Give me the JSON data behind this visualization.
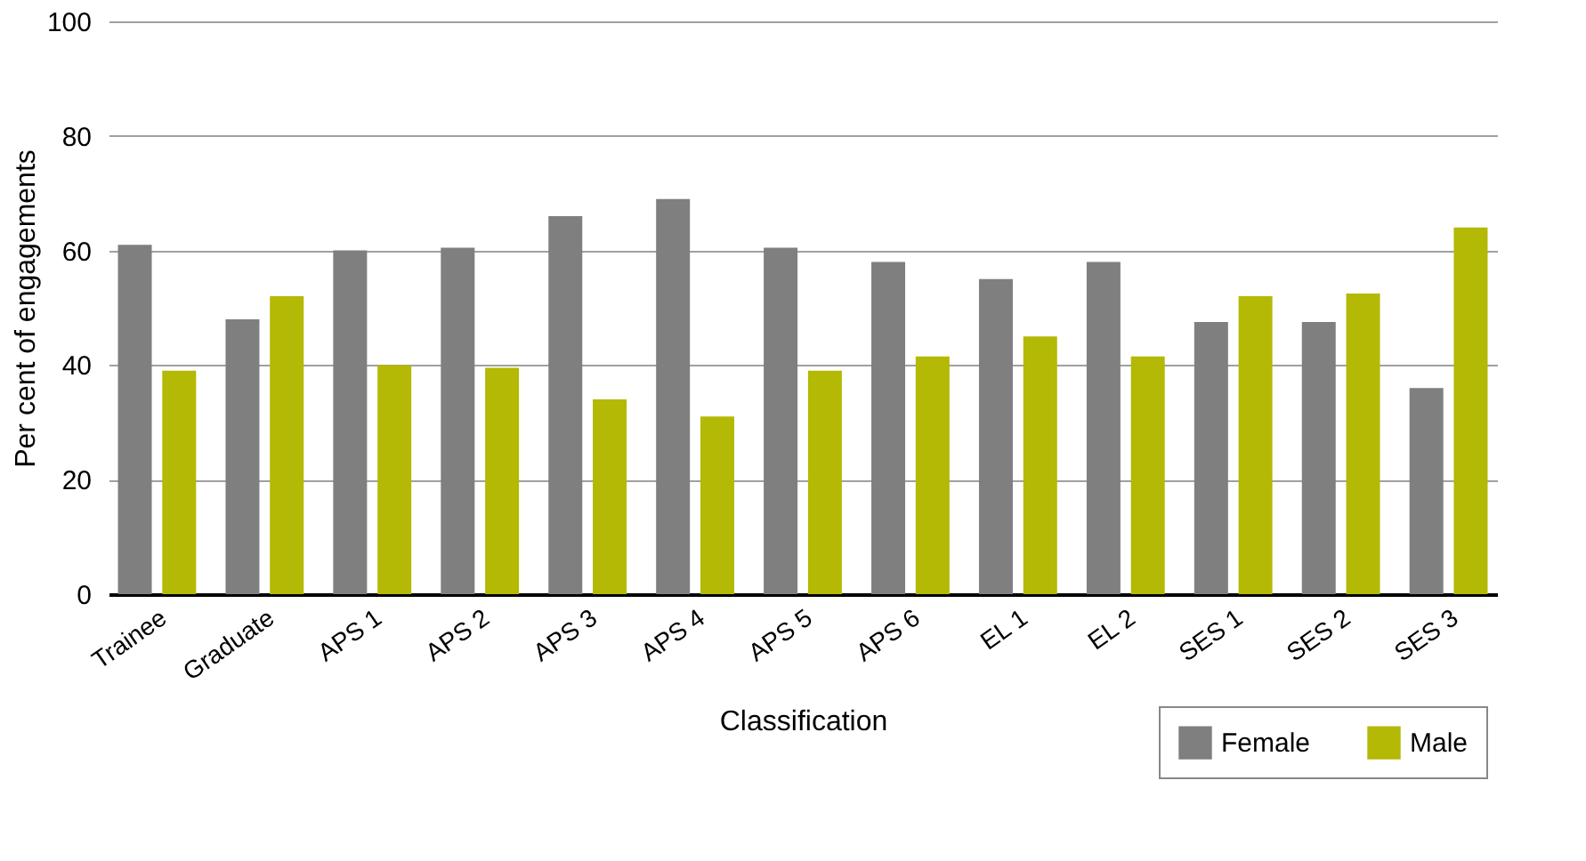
{
  "chart_data": {
    "type": "bar",
    "xlabel": "Classification",
    "ylabel": "Per cent of engagements",
    "categories": [
      "Trainee",
      "Graduate",
      "APS 1",
      "APS 2",
      "APS 3",
      "APS 4",
      "APS 5",
      "APS 6",
      "EL 1",
      "EL 2",
      "SES 1",
      "SES 2",
      "SES 3"
    ],
    "series": [
      {
        "name": "Female",
        "color": "#7f7f7f",
        "values": [
          61,
          48,
          60,
          60.5,
          66,
          69,
          60.5,
          58,
          55,
          58,
          47.5,
          47.5,
          36
        ]
      },
      {
        "name": "Male",
        "color": "#b3b904",
        "values": [
          39,
          52,
          40,
          39.5,
          34,
          31,
          39,
          41.5,
          45,
          41.5,
          52,
          52.5,
          64
        ]
      }
    ],
    "ylim": [
      0,
      100
    ],
    "yticks": [
      0,
      20,
      40,
      60,
      80,
      100
    ],
    "grid": "y",
    "legend": "bottom right"
  }
}
